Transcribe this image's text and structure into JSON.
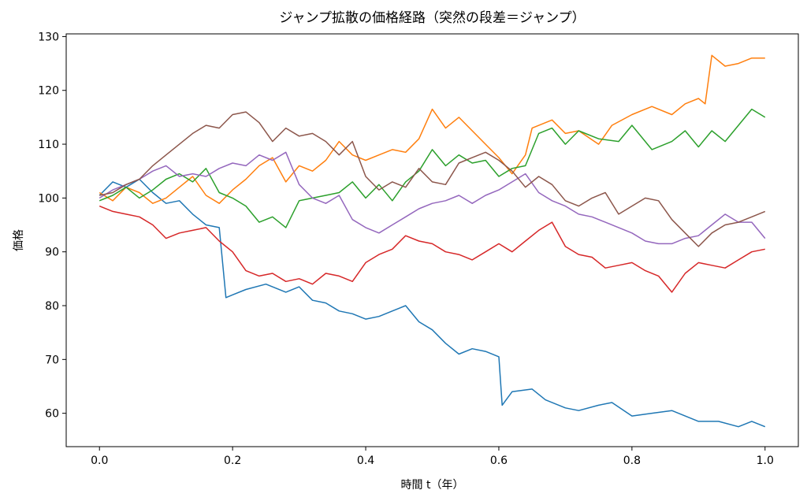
{
  "chart_data": {
    "type": "line",
    "title": "ジャンプ拡散の価格経路（突然の段差＝ジャンプ）",
    "xlabel": "時間 t（年）",
    "ylabel": "価格",
    "xlim": [
      -0.05,
      1.05
    ],
    "ylim": [
      53.8,
      130.5
    ],
    "xticks": [
      0.0,
      0.2,
      0.4,
      0.6,
      0.8,
      1.0
    ],
    "xtick_labels": [
      "0.0",
      "0.2",
      "0.4",
      "0.6",
      "0.8",
      "1.0"
    ],
    "yticks": [
      60,
      70,
      80,
      90,
      100,
      110,
      120,
      130
    ],
    "ytick_labels": [
      "60",
      "70",
      "80",
      "90",
      "100",
      "110",
      "120",
      "130"
    ],
    "grid": false,
    "legend": "none",
    "series": [
      {
        "color": "#1f77b4",
        "x": [
          0.0,
          0.02,
          0.04,
          0.06,
          0.08,
          0.1,
          0.12,
          0.14,
          0.16,
          0.18,
          0.19,
          0.2,
          0.22,
          0.25,
          0.28,
          0.3,
          0.32,
          0.34,
          0.36,
          0.38,
          0.4,
          0.42,
          0.44,
          0.46,
          0.48,
          0.5,
          0.52,
          0.54,
          0.56,
          0.58,
          0.6,
          0.605,
          0.62,
          0.65,
          0.67,
          0.7,
          0.72,
          0.75,
          0.77,
          0.8,
          0.83,
          0.86,
          0.9,
          0.93,
          0.96,
          0.98,
          1.0
        ],
        "y": [
          100.5,
          103.0,
          102.0,
          103.5,
          101.0,
          99.0,
          99.5,
          97.0,
          95.0,
          94.5,
          81.5,
          82.0,
          83.0,
          84.0,
          82.5,
          83.5,
          81.0,
          80.5,
          79.0,
          78.5,
          77.5,
          78.0,
          79.0,
          80.0,
          77.0,
          75.5,
          73.0,
          71.0,
          72.0,
          71.5,
          70.5,
          61.5,
          64.0,
          64.5,
          62.5,
          61.0,
          60.5,
          61.5,
          62.0,
          59.5,
          60.0,
          60.5,
          58.5,
          58.5,
          57.5,
          58.5,
          57.5
        ]
      },
      {
        "color": "#ff7f0e",
        "x": [
          0.0,
          0.02,
          0.04,
          0.06,
          0.08,
          0.1,
          0.12,
          0.14,
          0.16,
          0.18,
          0.2,
          0.22,
          0.24,
          0.26,
          0.28,
          0.3,
          0.32,
          0.34,
          0.36,
          0.38,
          0.4,
          0.42,
          0.44,
          0.46,
          0.48,
          0.5,
          0.52,
          0.54,
          0.56,
          0.58,
          0.6,
          0.62,
          0.64,
          0.65,
          0.68,
          0.7,
          0.72,
          0.75,
          0.77,
          0.8,
          0.83,
          0.86,
          0.88,
          0.9,
          0.91,
          0.92,
          0.94,
          0.96,
          0.98,
          1.0
        ],
        "y": [
          101.0,
          99.5,
          102.0,
          101.0,
          99.0,
          100.0,
          102.0,
          104.0,
          100.5,
          99.0,
          101.5,
          103.5,
          106.0,
          107.5,
          103.0,
          106.0,
          105.0,
          107.0,
          110.5,
          108.0,
          107.0,
          108.0,
          109.0,
          108.5,
          111.0,
          116.5,
          113.0,
          115.0,
          112.5,
          110.0,
          107.5,
          104.5,
          108.0,
          113.0,
          114.5,
          112.0,
          112.5,
          110.0,
          113.5,
          115.5,
          117.0,
          115.5,
          117.5,
          118.5,
          117.5,
          126.5,
          124.5,
          125.0,
          126.0,
          126.0
        ]
      },
      {
        "color": "#2ca02c",
        "x": [
          0.0,
          0.02,
          0.04,
          0.06,
          0.08,
          0.1,
          0.12,
          0.14,
          0.16,
          0.18,
          0.2,
          0.22,
          0.24,
          0.26,
          0.28,
          0.3,
          0.32,
          0.34,
          0.36,
          0.38,
          0.4,
          0.42,
          0.44,
          0.46,
          0.48,
          0.5,
          0.52,
          0.54,
          0.56,
          0.58,
          0.6,
          0.62,
          0.64,
          0.66,
          0.68,
          0.7,
          0.72,
          0.75,
          0.78,
          0.8,
          0.83,
          0.86,
          0.88,
          0.9,
          0.92,
          0.94,
          0.96,
          0.98,
          1.0
        ],
        "y": [
          99.5,
          100.5,
          102.0,
          100.0,
          101.5,
          103.5,
          104.5,
          103.0,
          105.5,
          101.0,
          100.0,
          98.5,
          95.5,
          96.5,
          94.5,
          99.5,
          100.0,
          100.5,
          101.0,
          103.0,
          100.0,
          102.5,
          99.5,
          103.0,
          105.0,
          109.0,
          106.0,
          108.0,
          106.5,
          107.0,
          104.0,
          105.5,
          106.0,
          112.0,
          113.0,
          110.0,
          112.5,
          111.0,
          110.5,
          113.5,
          109.0,
          110.5,
          112.5,
          109.5,
          112.5,
          110.5,
          113.5,
          116.5,
          115.0
        ]
      },
      {
        "color": "#d62728",
        "x": [
          0.0,
          0.02,
          0.04,
          0.06,
          0.08,
          0.1,
          0.12,
          0.14,
          0.16,
          0.18,
          0.2,
          0.22,
          0.24,
          0.26,
          0.28,
          0.3,
          0.32,
          0.34,
          0.36,
          0.38,
          0.4,
          0.42,
          0.44,
          0.46,
          0.48,
          0.5,
          0.52,
          0.54,
          0.56,
          0.58,
          0.6,
          0.62,
          0.64,
          0.66,
          0.68,
          0.7,
          0.72,
          0.74,
          0.76,
          0.78,
          0.8,
          0.82,
          0.84,
          0.86,
          0.88,
          0.9,
          0.92,
          0.94,
          0.96,
          0.98,
          1.0
        ],
        "y": [
          98.5,
          97.5,
          97.0,
          96.5,
          95.0,
          92.5,
          93.5,
          94.0,
          94.5,
          92.0,
          90.0,
          86.5,
          85.5,
          86.0,
          84.5,
          85.0,
          84.0,
          86.0,
          85.5,
          84.5,
          88.0,
          89.5,
          90.5,
          93.0,
          92.0,
          91.5,
          90.0,
          89.5,
          88.5,
          90.0,
          91.5,
          90.0,
          92.0,
          94.0,
          95.5,
          91.0,
          89.5,
          89.0,
          87.0,
          87.5,
          88.0,
          86.5,
          85.5,
          82.5,
          86.0,
          88.0,
          87.5,
          87.0,
          88.5,
          90.0,
          90.5
        ]
      },
      {
        "color": "#9467bd",
        "x": [
          0.0,
          0.02,
          0.04,
          0.06,
          0.08,
          0.1,
          0.12,
          0.14,
          0.16,
          0.18,
          0.2,
          0.22,
          0.24,
          0.26,
          0.28,
          0.3,
          0.32,
          0.34,
          0.36,
          0.38,
          0.4,
          0.42,
          0.44,
          0.46,
          0.48,
          0.5,
          0.52,
          0.54,
          0.56,
          0.58,
          0.6,
          0.62,
          0.64,
          0.66,
          0.68,
          0.7,
          0.72,
          0.74,
          0.76,
          0.78,
          0.8,
          0.82,
          0.84,
          0.86,
          0.88,
          0.9,
          0.92,
          0.94,
          0.96,
          0.98,
          1.0
        ],
        "y": [
          100.0,
          101.5,
          102.5,
          103.5,
          105.0,
          106.0,
          104.0,
          104.5,
          104.0,
          105.5,
          106.5,
          106.0,
          108.0,
          107.0,
          108.5,
          102.5,
          100.0,
          99.0,
          100.5,
          96.0,
          94.5,
          93.5,
          95.0,
          96.5,
          98.0,
          99.0,
          99.5,
          100.5,
          99.0,
          100.5,
          101.5,
          103.0,
          104.5,
          101.0,
          99.5,
          98.5,
          97.0,
          96.5,
          95.5,
          94.5,
          93.5,
          92.0,
          91.5,
          91.5,
          92.5,
          93.0,
          95.0,
          97.0,
          95.5,
          95.5,
          92.5
        ]
      },
      {
        "color": "#8c564b",
        "x": [
          0.0,
          0.02,
          0.04,
          0.06,
          0.08,
          0.1,
          0.12,
          0.14,
          0.16,
          0.18,
          0.2,
          0.22,
          0.24,
          0.26,
          0.28,
          0.3,
          0.32,
          0.34,
          0.36,
          0.38,
          0.4,
          0.42,
          0.44,
          0.46,
          0.48,
          0.5,
          0.52,
          0.54,
          0.56,
          0.58,
          0.6,
          0.62,
          0.64,
          0.66,
          0.68,
          0.7,
          0.72,
          0.74,
          0.76,
          0.78,
          0.8,
          0.82,
          0.84,
          0.86,
          0.88,
          0.9,
          0.92,
          0.94,
          0.96,
          0.98,
          1.0
        ],
        "y": [
          100.5,
          101.0,
          102.5,
          103.5,
          106.0,
          108.0,
          110.0,
          112.0,
          113.5,
          113.0,
          115.5,
          116.0,
          114.0,
          110.5,
          113.0,
          111.5,
          112.0,
          110.5,
          108.0,
          110.5,
          104.0,
          101.5,
          103.0,
          102.0,
          105.5,
          103.0,
          102.5,
          106.5,
          107.5,
          108.5,
          107.0,
          105.0,
          102.0,
          104.0,
          102.5,
          99.5,
          98.5,
          100.0,
          101.0,
          97.0,
          98.5,
          100.0,
          99.5,
          96.0,
          93.5,
          91.0,
          93.5,
          95.0,
          95.5,
          96.5,
          97.5
        ]
      }
    ]
  }
}
